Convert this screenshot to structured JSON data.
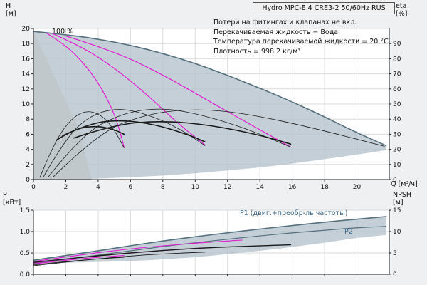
{
  "header": {
    "title": "Hydro MPC-E 4 CRE3-2 50/60Hz RUS"
  },
  "notes": {
    "line1": "Потери на фитингах и клапанах не вкл.",
    "line2": "Перекачиваемая жидкость = Вода",
    "line3": "Температура перекачиваемой жидкости = 20 °C",
    "line4": "Плотность = 998.2 кг/м³"
  },
  "colors": {
    "envelope": "#b6c3cd",
    "wedge": "#bfc6cb",
    "speed_curve": "#54707e",
    "magenta": "#e01ed0",
    "black": "#1a1a1a",
    "label_blue": "#3d6585",
    "grid": "#d9dcde",
    "axis": "#222222"
  },
  "chart_data": [
    {
      "type": "line",
      "title": "Pump head and efficiency curves",
      "xlabel": "Q [м³/ч]",
      "ylabel_left": "H [м]",
      "ylabel_right": "eta [%]",
      "xlim": [
        0,
        22
      ],
      "ylim_left": [
        0,
        20
      ],
      "ylim_right": [
        0,
        100
      ],
      "grid": true,
      "x_ticks": [
        [
          0,
          "0"
        ],
        [
          2,
          "2"
        ],
        [
          4,
          "4"
        ],
        [
          6,
          "6"
        ],
        [
          8,
          "8"
        ],
        [
          10,
          "10"
        ],
        [
          12,
          "12"
        ],
        [
          14,
          "14"
        ],
        [
          16,
          "16"
        ],
        [
          18,
          "18"
        ],
        [
          20,
          "20"
        ]
      ],
      "y_ticks_left": [
        [
          0,
          "0"
        ],
        [
          2,
          "2"
        ],
        [
          4,
          "4"
        ],
        [
          6,
          "6"
        ],
        [
          8,
          "8"
        ],
        [
          10,
          "10"
        ],
        [
          12,
          "12"
        ],
        [
          14,
          "14"
        ],
        [
          16,
          "16"
        ],
        [
          18,
          "18"
        ],
        [
          20,
          "20"
        ]
      ],
      "y_ticks_right": [
        [
          0,
          "0"
        ],
        [
          10,
          "10"
        ],
        [
          20,
          "20"
        ],
        [
          30,
          "30"
        ],
        [
          40,
          "40"
        ],
        [
          50,
          "50"
        ],
        [
          60,
          "60"
        ],
        [
          70,
          "70"
        ],
        [
          80,
          "80"
        ],
        [
          90,
          "90"
        ]
      ],
      "annotations": [
        {
          "text": "100 %"
        }
      ],
      "areas": [
        {
          "name": "operating-envelope",
          "color": "#b6c3cd",
          "opacity": 0.8,
          "points": [
            [
              0,
              19.6
            ],
            [
              2,
              19.2
            ],
            [
              4,
              18.6
            ],
            [
              6,
              17.8
            ],
            [
              8,
              16.7
            ],
            [
              10,
              15.4
            ],
            [
              12,
              13.8
            ],
            [
              14,
              12.1
            ],
            [
              16,
              10.3
            ],
            [
              18,
              8.3
            ],
            [
              20,
              6.2
            ],
            [
              21.8,
              4.5
            ],
            [
              21.8,
              3.9
            ],
            [
              20,
              3.3
            ],
            [
              18,
              2.7
            ],
            [
              16,
              2.1
            ],
            [
              14,
              1.6
            ],
            [
              12,
              1.2
            ],
            [
              10,
              0.83
            ],
            [
              8,
              0.53
            ],
            [
              6,
              0.3
            ],
            [
              4,
              0.13
            ],
            [
              2,
              0.03
            ],
            [
              0,
              0
            ]
          ]
        },
        {
          "name": "low-flow-wedge",
          "color": "#bfc6cb",
          "opacity": 0.9,
          "points": [
            [
              0,
              19.6
            ],
            [
              0.9,
              15.5
            ],
            [
              1.8,
              11.3
            ],
            [
              2.7,
              7.2
            ],
            [
              3.6,
              0
            ],
            [
              0,
              0
            ]
          ]
        }
      ],
      "series": [
        {
          "name": "speed-100pct",
          "color": "#54707e",
          "width": 1.6,
          "points": [
            [
              0,
              19.6
            ],
            [
              2,
              19.2
            ],
            [
              4,
              18.6
            ],
            [
              6,
              17.8
            ],
            [
              8,
              16.7
            ],
            [
              10,
              15.4
            ],
            [
              12,
              13.8
            ],
            [
              14,
              12.1
            ],
            [
              16,
              10.3
            ],
            [
              18,
              8.3
            ],
            [
              20,
              6.2
            ],
            [
              21.8,
              4.5
            ]
          ]
        },
        {
          "name": "duty-curve-1",
          "color": "#e01ed0",
          "width": 1.2,
          "points": [
            [
              0.8,
              19.4
            ],
            [
              2,
              17.8
            ],
            [
              3.2,
              15.2
            ],
            [
              4.2,
              12.2
            ],
            [
              5.1,
              8.3
            ],
            [
              5.6,
              4.3
            ]
          ]
        },
        {
          "name": "duty-curve-2",
          "color": "#e01ed0",
          "width": 1.2,
          "points": [
            [
              1.2,
              19.3
            ],
            [
              3,
              17.6
            ],
            [
              5,
              14.8
            ],
            [
              7,
              11.3
            ],
            [
              9,
              7.3
            ],
            [
              10.6,
              4.6
            ]
          ]
        },
        {
          "name": "duty-curve-3",
          "color": "#e01ed0",
          "width": 1.2,
          "points": [
            [
              2,
              19.0
            ],
            [
              5,
              17.0
            ],
            [
              8,
              13.9
            ],
            [
              11,
              10.2
            ],
            [
              14,
              6.6
            ],
            [
              15.9,
              4.3
            ]
          ]
        },
        {
          "name": "eta-curve-1",
          "color": "#1a1a1a",
          "width": 0.8,
          "points": [
            [
              0.4,
              0.3
            ],
            [
              1.2,
              4.5
            ],
            [
              2.2,
              7.8
            ],
            [
              3.2,
              9.2
            ],
            [
              4.2,
              8.6
            ],
            [
              5.0,
              6.6
            ],
            [
              5.6,
              4.2
            ]
          ]
        },
        {
          "name": "eta-curve-2",
          "color": "#1a1a1a",
          "width": 0.8,
          "points": [
            [
              0.6,
              0.3
            ],
            [
              2,
              5.5
            ],
            [
              3.5,
              8.5
            ],
            [
              5.2,
              9.5
            ],
            [
              7,
              8.7
            ],
            [
              9,
              6.8
            ],
            [
              10.6,
              4.5
            ]
          ]
        },
        {
          "name": "eta-curve-3",
          "color": "#1a1a1a",
          "width": 0.8,
          "points": [
            [
              0.9,
              0.3
            ],
            [
              3,
              6.0
            ],
            [
              5.5,
              8.8
            ],
            [
              7.8,
              9.5
            ],
            [
              10,
              8.8
            ],
            [
              13,
              6.9
            ],
            [
              15.9,
              4.3
            ]
          ]
        },
        {
          "name": "eta-curve-4",
          "color": "#1a1a1a",
          "width": 0.8,
          "points": [
            [
              1.2,
              0.3
            ],
            [
              4,
              6.2
            ],
            [
              7,
              8.7
            ],
            [
              10,
              9.4
            ],
            [
              13,
              8.8
            ],
            [
              17,
              7.0
            ],
            [
              21.7,
              4.4
            ]
          ]
        },
        {
          "name": "eta-bold-1",
          "color": "#1a1a1a",
          "width": 1.6,
          "points": [
            [
              1.8,
              5.8
            ],
            [
              3.5,
              7.5
            ],
            [
              5.5,
              7.9
            ],
            [
              7.5,
              7.3
            ],
            [
              9.5,
              6.0
            ],
            [
              10.6,
              5.0
            ]
          ]
        },
        {
          "name": "eta-bold-2",
          "color": "#1a1a1a",
          "width": 1.6,
          "points": [
            [
              2.5,
              5.5
            ],
            [
              5,
              7.3
            ],
            [
              8,
              7.8
            ],
            [
              11,
              7.2
            ],
            [
              14,
              5.9
            ],
            [
              15.9,
              4.7
            ]
          ]
        },
        {
          "name": "eta-bold-3",
          "color": "#1a1a1a",
          "width": 1.6,
          "points": [
            [
              1.4,
              5.2
            ],
            [
              2.6,
              6.8
            ],
            [
              4,
              7.1
            ],
            [
              5,
              6.6
            ],
            [
              5.6,
              6.0
            ]
          ]
        }
      ]
    },
    {
      "type": "line",
      "title": "Power and NPSH curves",
      "xlabel": "",
      "ylabel_left": "P [кВт]",
      "ylabel_right": "NPSH [м]",
      "xlim": [
        0,
        22
      ],
      "ylim_left": [
        0,
        1.5
      ],
      "ylim_right": [
        0,
        15
      ],
      "grid": true,
      "x_ticks": [
        [
          0,
          ""
        ],
        [
          2,
          ""
        ],
        [
          4,
          ""
        ],
        [
          6,
          ""
        ],
        [
          8,
          ""
        ],
        [
          10,
          ""
        ],
        [
          12,
          ""
        ],
        [
          14,
          ""
        ],
        [
          16,
          ""
        ],
        [
          18,
          ""
        ],
        [
          20,
          ""
        ]
      ],
      "y_ticks_left": [
        [
          0,
          "0.0"
        ],
        [
          0.5,
          "0.5"
        ],
        [
          1,
          "1.0"
        ],
        [
          1.5,
          "1.5"
        ]
      ],
      "y_ticks_right": [
        [
          0,
          "0"
        ],
        [
          5,
          "5"
        ],
        [
          10,
          "10"
        ],
        [
          15,
          "15"
        ]
      ],
      "annotations": [
        {
          "text": "P1 (двиг.+преобр-ль частоты)"
        },
        {
          "text": "P2"
        }
      ],
      "areas": [
        {
          "name": "power-envelope",
          "color": "#b6c3cd",
          "opacity": 0.8,
          "points": [
            [
              0,
              0.33
            ],
            [
              2,
              0.44
            ],
            [
              4,
              0.55
            ],
            [
              6,
              0.67
            ],
            [
              8,
              0.78
            ],
            [
              10,
              0.88
            ],
            [
              12,
              0.97
            ],
            [
              14,
              1.06
            ],
            [
              16,
              1.14
            ],
            [
              18,
              1.22
            ],
            [
              20,
              1.29
            ],
            [
              21.8,
              1.35
            ],
            [
              21.8,
              0.92
            ],
            [
              20,
              0.85
            ],
            [
              18,
              0.74
            ],
            [
              16,
              0.64
            ],
            [
              14,
              0.55
            ],
            [
              12,
              0.47
            ],
            [
              10,
              0.4
            ],
            [
              8,
              0.35
            ],
            [
              6,
              0.31
            ],
            [
              4,
              0.29
            ],
            [
              2,
              0.27
            ],
            [
              0,
              0.26
            ]
          ]
        }
      ],
      "series": [
        {
          "name": "p1-curve",
          "color": "#54707e",
          "width": 1.6,
          "points": [
            [
              0,
              0.33
            ],
            [
              2,
              0.44
            ],
            [
              4,
              0.55
            ],
            [
              6,
              0.67
            ],
            [
              8,
              0.78
            ],
            [
              10,
              0.88
            ],
            [
              12,
              0.97
            ],
            [
              14,
              1.06
            ],
            [
              16,
              1.14
            ],
            [
              18,
              1.22
            ],
            [
              20,
              1.29
            ],
            [
              21.8,
              1.35
            ]
          ]
        },
        {
          "name": "p2-curve",
          "color": "#54707e",
          "width": 1.2,
          "points": [
            [
              0,
              0.25
            ],
            [
              2,
              0.35
            ],
            [
              4,
              0.45
            ],
            [
              6,
              0.55
            ],
            [
              8,
              0.65
            ],
            [
              10,
              0.74
            ],
            [
              12,
              0.82
            ],
            [
              14,
              0.9
            ],
            [
              16,
              0.97
            ],
            [
              18,
              1.03
            ],
            [
              20,
              1.09
            ],
            [
              21.8,
              1.12
            ]
          ]
        },
        {
          "name": "p-duty-1",
          "color": "#e01ed0",
          "width": 1.1,
          "points": [
            [
              0,
              0.3
            ],
            [
              3,
              0.46
            ],
            [
              6,
              0.6
            ],
            [
              9,
              0.7
            ],
            [
              12,
              0.78
            ],
            [
              12.9,
              0.8
            ]
          ]
        },
        {
          "name": "p-duty-2",
          "color": "#e01ed0",
          "width": 1.1,
          "points": [
            [
              0,
              0.27
            ],
            [
              3,
              0.4
            ],
            [
              6,
              0.5
            ],
            [
              8.5,
              0.57
            ],
            [
              10.6,
              0.62
            ]
          ]
        },
        {
          "name": "p-duty-3",
          "color": "#e01ed0",
          "width": 1.1,
          "points": [
            [
              0,
              0.24
            ],
            [
              2,
              0.33
            ],
            [
              4,
              0.4
            ],
            [
              5.6,
              0.44
            ]
          ]
        },
        {
          "name": "p-black-1",
          "color": "#1a1a1a",
          "width": 0.9,
          "points": [
            [
              0,
              0.22
            ],
            [
              2,
              0.3
            ],
            [
              4,
              0.36
            ],
            [
              5.6,
              0.4
            ]
          ]
        },
        {
          "name": "p-black-2",
          "color": "#1a1a1a",
          "width": 0.9,
          "points": [
            [
              0,
              0.2
            ],
            [
              3,
              0.33
            ],
            [
              6,
              0.43
            ],
            [
              8,
              0.48
            ],
            [
              10.6,
              0.52
            ]
          ]
        },
        {
          "name": "p-black-3",
          "color": "#1a1a1a",
          "width": 1.4,
          "points": [
            [
              0,
              0.28
            ],
            [
              4,
              0.44
            ],
            [
              8,
              0.56
            ],
            [
              11,
              0.63
            ],
            [
              15.9,
              0.69
            ]
          ]
        }
      ]
    }
  ]
}
